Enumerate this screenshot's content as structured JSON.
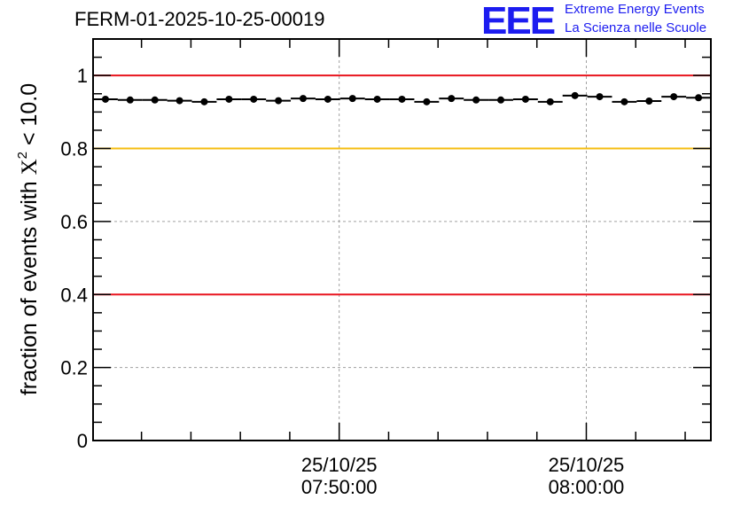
{
  "title": "FERM-01-2025-10-25-00019",
  "logo": {
    "mark": "EEE",
    "line1": "Extreme Energy Events",
    "line2": "La Scienza nelle Scuole",
    "color": "#1c1cf0"
  },
  "chart_data": {
    "type": "scatter",
    "ylabel": "fraction of events with",
    "ylabel_symbol": "X",
    "ylabel_sup": "2",
    "ylabel_suffix": " < 10.0",
    "ylim": [
      0,
      1.1
    ],
    "yticks": [
      {
        "v": 0,
        "label": "0"
      },
      {
        "v": 0.2,
        "label": "0.2"
      },
      {
        "v": 0.4,
        "label": "0.4"
      },
      {
        "v": 0.6,
        "label": "0.6"
      },
      {
        "v": 0.8,
        "label": "0.8"
      },
      {
        "v": 1,
        "label": "1"
      }
    ],
    "xlim_minutes": [
      -9.96,
      15.04
    ],
    "xticks": [
      {
        "min": 0,
        "date": "25/10/25",
        "time": "07:50:00"
      },
      {
        "min": 10,
        "date": "25/10/25",
        "time": "08:00:00"
      }
    ],
    "bin_width_minutes": 1,
    "points": [
      {
        "x": -9.46,
        "y": 0.935
      },
      {
        "x": -8.46,
        "y": 0.933
      },
      {
        "x": -7.46,
        "y": 0.933
      },
      {
        "x": -6.46,
        "y": 0.931
      },
      {
        "x": -5.46,
        "y": 0.928
      },
      {
        "x": -4.46,
        "y": 0.935
      },
      {
        "x": -3.46,
        "y": 0.935
      },
      {
        "x": -2.46,
        "y": 0.931
      },
      {
        "x": -1.46,
        "y": 0.937
      },
      {
        "x": -0.46,
        "y": 0.935
      },
      {
        "x": 0.54,
        "y": 0.937
      },
      {
        "x": 1.54,
        "y": 0.935
      },
      {
        "x": 2.54,
        "y": 0.935
      },
      {
        "x": 3.54,
        "y": 0.928
      },
      {
        "x": 4.54,
        "y": 0.937
      },
      {
        "x": 5.54,
        "y": 0.933
      },
      {
        "x": 6.54,
        "y": 0.933
      },
      {
        "x": 7.54,
        "y": 0.935
      },
      {
        "x": 8.54,
        "y": 0.928
      },
      {
        "x": 9.54,
        "y": 0.945
      },
      {
        "x": 10.54,
        "y": 0.942
      },
      {
        "x": 11.54,
        "y": 0.928
      },
      {
        "x": 12.54,
        "y": 0.93
      },
      {
        "x": 13.54,
        "y": 0.942
      },
      {
        "x": 14.54,
        "y": 0.939
      }
    ],
    "reference_lines": [
      {
        "y": 1.0,
        "color": "#e8141e"
      },
      {
        "y": 0.8,
        "color": "#f5bd10"
      },
      {
        "y": 0.4,
        "color": "#e8141e"
      }
    ],
    "grid": true
  }
}
